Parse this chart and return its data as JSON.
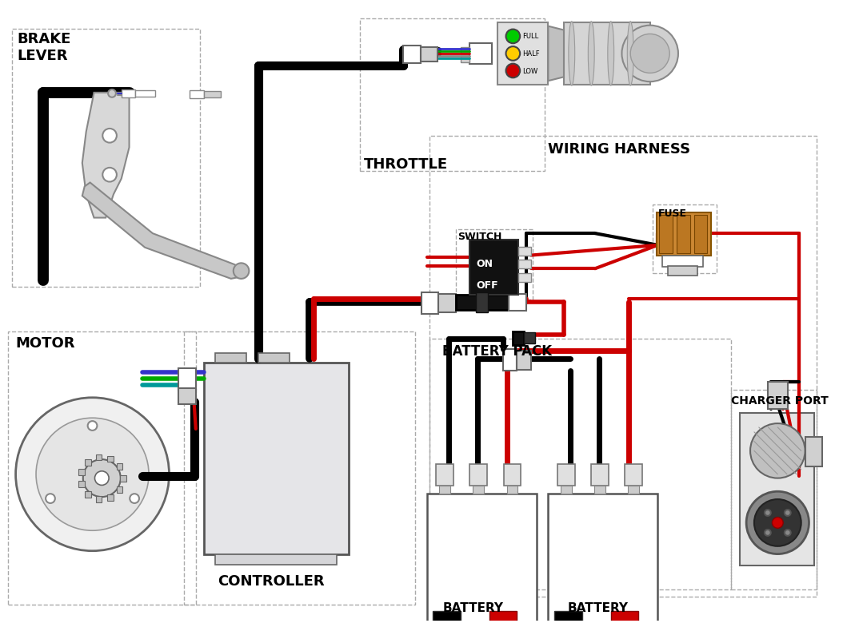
{
  "bg_color": "#ffffff",
  "wire_black": "#000000",
  "wire_red": "#cc0000",
  "wire_blue": "#3333cc",
  "wire_green": "#009900",
  "wire_teal": "#009999",
  "wire_purple": "#aa00aa",
  "dash_color": "#aaaaaa",
  "comp_edge": "#666666",
  "comp_face": "#e8e8e8",
  "labels": {
    "brake_lever": "BRAKE\nLEVER",
    "throttle": "THROTTLE",
    "wiring_harness": "WIRING HARNESS",
    "motor": "MOTOR",
    "controller": "CONTROLLER",
    "battery_pack": "BATTERY PACK",
    "charger_port": "CHARGER PORT",
    "battery1": "BATTERY",
    "battery2": "BATTERY",
    "switch": "SWITCH",
    "fuse": "FUSE"
  },
  "boxes": {
    "brake_lever": [
      15,
      28,
      240,
      330
    ],
    "throttle": [
      460,
      15,
      235,
      195
    ],
    "wiring_harness": [
      548,
      165,
      495,
      590
    ],
    "motor": [
      10,
      415,
      240,
      350
    ],
    "controller": [
      235,
      415,
      295,
      350
    ],
    "battery_pack": [
      548,
      425,
      385,
      320
    ],
    "charger_port": [
      933,
      490,
      110,
      255
    ],
    "switch": [
      582,
      285,
      98,
      90
    ]
  }
}
